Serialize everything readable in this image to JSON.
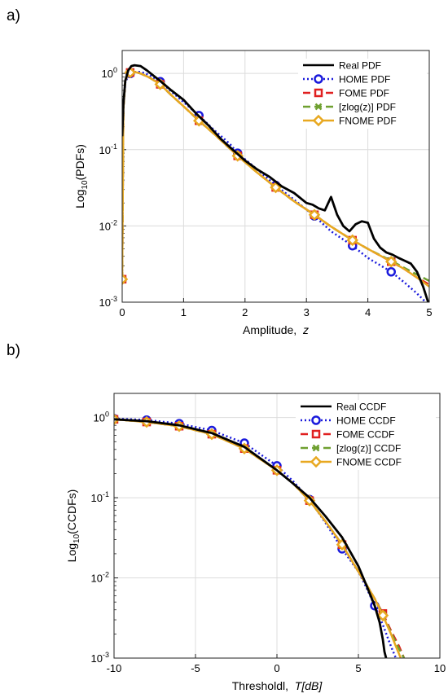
{
  "chart_data": [
    {
      "panel_label": "a)",
      "type": "line",
      "xlabel": "Amplitude,",
      "xlabel_var": "z",
      "ylabel_prefix": "Log",
      "ylabel_sub": "10",
      "ylabel_suffix": "(PDFs)",
      "xlim": [
        0,
        5
      ],
      "ylim": [
        0.001,
        2
      ],
      "yscale": "log",
      "grid": true,
      "legend_position": "top-right",
      "xticks": [
        "0",
        "1",
        "2",
        "3",
        "4",
        "5"
      ],
      "yticks": [
        {
          "base": "10",
          "exp": "0",
          "value": 1
        },
        {
          "base": "10",
          "exp": "-1",
          "value": 0.1
        },
        {
          "base": "10",
          "exp": "-2",
          "value": 0.01
        },
        {
          "base": "10",
          "exp": "-3",
          "value": 0.001
        }
      ],
      "series": [
        {
          "name": "Real PDF",
          "color": "#000000",
          "style": "solid",
          "marker": "none",
          "x": [
            0.0,
            0.02,
            0.05,
            0.1,
            0.15,
            0.2,
            0.3,
            0.4,
            0.5,
            0.6,
            0.8,
            1.0,
            1.2,
            1.4,
            1.6,
            1.8,
            2.0,
            2.2,
            2.4,
            2.6,
            2.8,
            3.0,
            3.1,
            3.2,
            3.3,
            3.4,
            3.5,
            3.6,
            3.7,
            3.8,
            3.9,
            4.0,
            4.1,
            4.2,
            4.3,
            4.4,
            4.5,
            4.6,
            4.7,
            4.8,
            4.9,
            5.0
          ],
          "y": [
            0.15,
            0.4,
            0.8,
            1.1,
            1.25,
            1.28,
            1.25,
            1.1,
            0.95,
            0.82,
            0.6,
            0.45,
            0.3,
            0.21,
            0.14,
            0.1,
            0.072,
            0.055,
            0.044,
            0.033,
            0.027,
            0.02,
            0.019,
            0.017,
            0.016,
            0.024,
            0.014,
            0.01,
            0.0085,
            0.0105,
            0.0115,
            0.011,
            0.0068,
            0.0052,
            0.0045,
            0.0042,
            0.0038,
            0.0035,
            0.0032,
            0.0025,
            0.0016,
            0.0009
          ]
        },
        {
          "name": "HOME PDF",
          "color": "#1a1adc",
          "style": "dotted",
          "marker": "circle",
          "x": [
            0.0,
            0.02,
            0.05,
            0.1,
            0.15,
            0.2,
            0.3,
            0.45,
            0.62,
            0.8,
            1.0,
            1.25,
            1.5,
            1.75,
            1.88,
            2.2,
            2.5,
            2.8,
            3.13,
            3.4,
            3.75,
            4.0,
            4.38,
            4.6,
            4.8,
            5.0
          ],
          "y": [
            0.002,
            0.35,
            0.75,
            0.95,
            1.03,
            1.05,
            1.05,
            0.95,
            0.78,
            0.58,
            0.42,
            0.28,
            0.18,
            0.12,
            0.09,
            0.055,
            0.034,
            0.022,
            0.0135,
            0.0085,
            0.0055,
            0.0038,
            0.0025,
            0.0018,
            0.0013,
            0.0009
          ]
        },
        {
          "name": "FOME PDF",
          "color": "#e02020",
          "style": "dashed",
          "marker": "square",
          "x": [
            0.0,
            0.02,
            0.05,
            0.1,
            0.15,
            0.2,
            0.3,
            0.45,
            0.62,
            0.8,
            1.0,
            1.25,
            1.5,
            1.88,
            2.2,
            2.5,
            2.8,
            3.13,
            3.4,
            3.75,
            4.0,
            4.38,
            4.6,
            4.8,
            5.0
          ],
          "y": [
            0.002,
            0.35,
            0.8,
            1.0,
            1.05,
            1.05,
            1.0,
            0.88,
            0.72,
            0.52,
            0.37,
            0.24,
            0.16,
            0.083,
            0.05,
            0.032,
            0.021,
            0.014,
            0.0098,
            0.0065,
            0.005,
            0.0034,
            0.0027,
            0.0021,
            0.0017
          ]
        },
        {
          "name": "[zlog(z)] PDF",
          "color": "#6fa030",
          "style": "dashed",
          "marker": "x",
          "x": [
            0.0,
            0.02,
            0.05,
            0.1,
            0.15,
            0.2,
            0.3,
            0.45,
            0.62,
            0.8,
            1.0,
            1.25,
            1.5,
            1.88,
            2.2,
            2.5,
            2.8,
            3.13,
            3.4,
            3.75,
            4.0,
            4.38,
            4.6,
            4.8,
            5.0
          ],
          "y": [
            0.002,
            0.35,
            0.8,
            1.0,
            1.05,
            1.05,
            1.0,
            0.88,
            0.72,
            0.52,
            0.37,
            0.24,
            0.16,
            0.083,
            0.05,
            0.032,
            0.021,
            0.014,
            0.0098,
            0.0065,
            0.005,
            0.0035,
            0.0028,
            0.0023,
            0.0019
          ]
        },
        {
          "name": "FNOME PDF",
          "color": "#e8a820",
          "style": "solid",
          "marker": "diamond",
          "x": [
            0.0,
            0.02,
            0.05,
            0.1,
            0.15,
            0.2,
            0.3,
            0.45,
            0.62,
            0.8,
            1.0,
            1.25,
            1.5,
            1.88,
            2.2,
            2.5,
            2.8,
            3.13,
            3.4,
            3.75,
            4.0,
            4.38,
            4.6,
            4.8,
            5.0
          ],
          "y": [
            0.002,
            0.35,
            0.8,
            1.0,
            1.05,
            1.05,
            1.0,
            0.88,
            0.72,
            0.52,
            0.37,
            0.24,
            0.16,
            0.083,
            0.05,
            0.032,
            0.021,
            0.014,
            0.0098,
            0.0065,
            0.005,
            0.0034,
            0.0027,
            0.0021,
            0.0016
          ]
        }
      ],
      "markers_x": {
        "HOME PDF": [
          0.0,
          0.13,
          0.62,
          1.25,
          1.88,
          2.5,
          3.13,
          3.75,
          4.38
        ],
        "FOME PDF": [
          0.0,
          0.13,
          0.62,
          1.25,
          1.88,
          2.5,
          3.13,
          3.75,
          4.38
        ],
        "[zlog(z)] PDF": [
          0.0,
          0.13,
          0.62,
          1.25,
          1.88,
          2.5,
          3.13,
          3.75,
          4.38
        ],
        "FNOME PDF": [
          0.0,
          0.13,
          0.62,
          1.25,
          1.88,
          2.5,
          3.13,
          3.75,
          4.38
        ]
      }
    },
    {
      "panel_label": "b)",
      "type": "line",
      "xlabel": "Thresholdl,",
      "xlabel_var": "T[dB]",
      "ylabel_prefix": "Log",
      "ylabel_sub": "10",
      "ylabel_suffix": "(CCDFs)",
      "xlim": [
        -10,
        10
      ],
      "ylim": [
        0.001,
        2
      ],
      "yscale": "log",
      "grid": true,
      "legend_position": "top-right",
      "xticks": [
        "-10",
        "-5",
        "0",
        "5",
        "10"
      ],
      "yticks": [
        {
          "base": "10",
          "exp": "0",
          "value": 1
        },
        {
          "base": "10",
          "exp": "-1",
          "value": 0.1
        },
        {
          "base": "10",
          "exp": "-2",
          "value": 0.01
        },
        {
          "base": "10",
          "exp": "-3",
          "value": 0.001
        }
      ],
      "series": [
        {
          "name": "Real CCDF",
          "color": "#000000",
          "style": "solid",
          "marker": "none",
          "x": [
            -10,
            -8,
            -6,
            -4,
            -2,
            0,
            1,
            2,
            3,
            4,
            5,
            5.5,
            6,
            6.3,
            6.5,
            6.6,
            6.7
          ],
          "y": [
            0.95,
            0.9,
            0.8,
            0.64,
            0.43,
            0.22,
            0.15,
            0.1,
            0.058,
            0.032,
            0.014,
            0.008,
            0.0045,
            0.0028,
            0.0017,
            0.0012,
            0.001
          ]
        },
        {
          "name": "HOME CCDF",
          "color": "#1a1adc",
          "style": "dotted",
          "marker": "circle",
          "x": [
            -10,
            -8,
            -6,
            -4,
            -2,
            0,
            1,
            2,
            3,
            4,
            5,
            5.5,
            6,
            6.5,
            7,
            7.3
          ],
          "y": [
            0.97,
            0.93,
            0.84,
            0.69,
            0.48,
            0.25,
            0.16,
            0.095,
            0.048,
            0.023,
            0.012,
            0.0075,
            0.0045,
            0.0026,
            0.0014,
            0.001
          ]
        },
        {
          "name": "FOME CCDF",
          "color": "#e02020",
          "style": "dashed",
          "marker": "square",
          "x": [
            -10,
            -8,
            -6,
            -4,
            -2,
            0,
            1,
            2,
            3,
            4,
            5,
            5.5,
            6,
            6.5,
            7,
            7.5,
            7.8
          ],
          "y": [
            0.95,
            0.88,
            0.78,
            0.62,
            0.41,
            0.22,
            0.15,
            0.092,
            0.05,
            0.026,
            0.012,
            0.0082,
            0.0055,
            0.0036,
            0.0022,
            0.0014,
            0.001
          ]
        },
        {
          "name": "[zlog(z)] CCDF",
          "color": "#6fa030",
          "style": "dashed",
          "marker": "x",
          "x": [
            -10,
            -8,
            -6,
            -4,
            -2,
            0,
            1,
            2,
            3,
            4,
            5,
            5.5,
            6,
            6.5,
            7,
            7.5,
            7.8
          ],
          "y": [
            0.95,
            0.88,
            0.78,
            0.62,
            0.41,
            0.22,
            0.15,
            0.092,
            0.05,
            0.026,
            0.012,
            0.0082,
            0.0055,
            0.0035,
            0.0021,
            0.0013,
            0.001
          ]
        },
        {
          "name": "FNOME CCDF",
          "color": "#e8a820",
          "style": "solid",
          "marker": "diamond",
          "x": [
            -10,
            -8,
            -6,
            -4,
            -2,
            0,
            1,
            2,
            3,
            4,
            5,
            5.5,
            6,
            6.5,
            7,
            7.3,
            7.6
          ],
          "y": [
            0.95,
            0.88,
            0.78,
            0.62,
            0.41,
            0.22,
            0.15,
            0.092,
            0.05,
            0.026,
            0.012,
            0.0082,
            0.0055,
            0.0034,
            0.002,
            0.0014,
            0.001
          ]
        }
      ],
      "markers_x": {
        "HOME CCDF": [
          -10,
          -8,
          -6,
          -4,
          -2,
          0,
          2,
          4,
          6
        ],
        "FOME CCDF": [
          -10,
          -8,
          -6,
          -4,
          -2,
          0,
          2,
          4,
          6.5
        ],
        "[zlog(z)] CCDF": [
          -10,
          -8,
          -6,
          -4,
          -2,
          0,
          2,
          4,
          6.5
        ],
        "FNOME CCDF": [
          -10,
          -8,
          -6,
          -4,
          -2,
          0,
          2,
          4,
          6.5
        ]
      }
    }
  ]
}
